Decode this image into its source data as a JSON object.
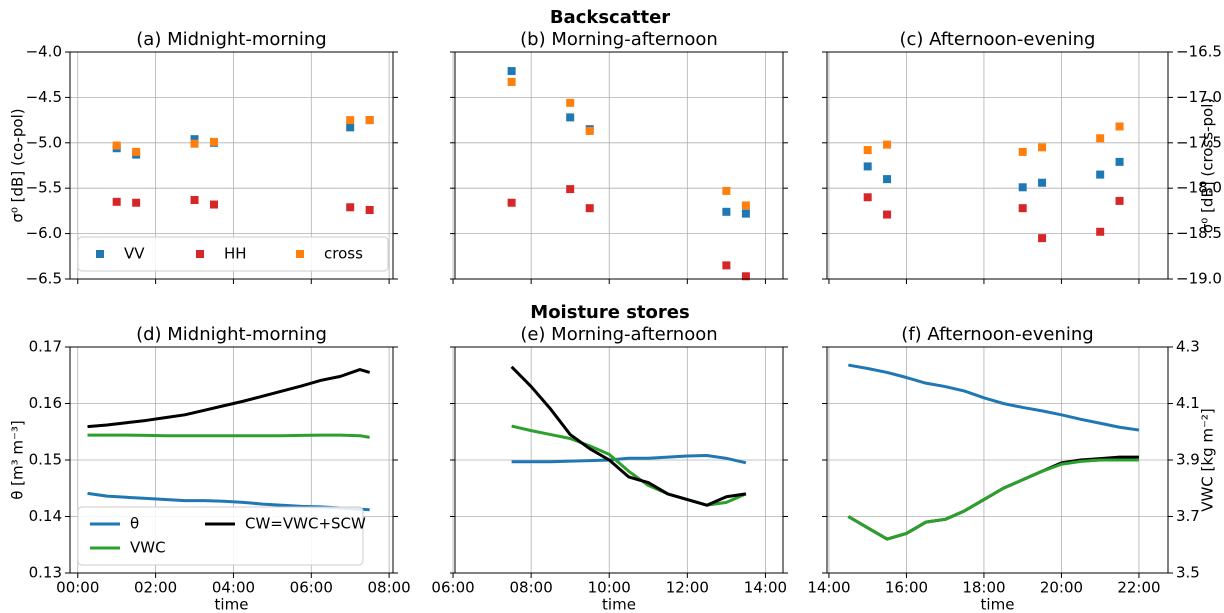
{
  "chart_data": [
    {
      "type": "scatter",
      "suptitle": "Backscatter",
      "title": "(a) Midnight-morning",
      "ylabel": "σ⁰ [dB] (co-pol)",
      "legend": "lower left",
      "ylim": [
        -6.5,
        -4.0
      ],
      "yticks": [
        {
          "value": -6.5,
          "label": "−6.5"
        },
        {
          "value": -6.0,
          "label": "−6.0"
        },
        {
          "value": -5.5,
          "label": "−5.5"
        },
        {
          "value": -5.0,
          "label": "−5.0"
        },
        {
          "value": -4.5,
          "label": "−4.5"
        },
        {
          "value": -4.0,
          "label": "−4.0"
        }
      ],
      "grid": true,
      "x": [
        1.0,
        1.5,
        3.0,
        3.5,
        7.0,
        7.5
      ],
      "series": [
        {
          "name": "VV",
          "color": "#1f77b4",
          "values": [
            -5.06,
            -5.13,
            -4.96,
            -5.0,
            -4.83,
            -4.75
          ]
        },
        {
          "name": "HH",
          "color": "#d62728",
          "values": [
            -5.65,
            -5.66,
            -5.63,
            -5.68,
            -5.71,
            -5.74
          ]
        },
        {
          "name": "cross",
          "color": "#ff7f0e",
          "axis": "y2",
          "values": [
            -17.53,
            -17.6,
            -17.51,
            -17.49,
            -17.25,
            -17.25
          ]
        }
      ]
    },
    {
      "type": "scatter",
      "title": "(b) Morning-afternoon",
      "ylim": [
        -6.5,
        -4.0
      ],
      "grid": true,
      "x": [
        7.5,
        9.0,
        9.5,
        13.0,
        13.5
      ],
      "series": [
        {
          "color": "#1f77b4",
          "values": [
            -4.21,
            -4.72,
            -4.85,
            -5.76,
            -5.78
          ]
        },
        {
          "color": "#d62728",
          "values": [
            -5.66,
            -5.51,
            -5.72,
            -6.35,
            -6.47
          ]
        },
        {
          "color": "#ff7f0e",
          "axis": "y2",
          "values": [
            -16.83,
            -17.06,
            -17.37,
            -18.03,
            -18.19
          ]
        }
      ]
    },
    {
      "type": "scatter",
      "title": "(c) Afternoon-evening",
      "y2label": "σ⁰ [dB] (cross-pol)",
      "ylim": [
        -6.5,
        -4.0
      ],
      "y2lim": [
        -19.0,
        -16.5
      ],
      "y2ticks": [
        {
          "value": -19.0,
          "label": "−19.0"
        },
        {
          "value": -18.5,
          "label": "−18.5"
        },
        {
          "value": -18.0,
          "label": "−18.0"
        },
        {
          "value": -17.5,
          "label": "−17.5"
        },
        {
          "value": -17.0,
          "label": "−17.0"
        },
        {
          "value": -16.5,
          "label": "−16.5"
        }
      ],
      "grid": true,
      "x": [
        15.0,
        15.5,
        19.0,
        19.5,
        21.0,
        21.5
      ],
      "series": [
        {
          "color": "#1f77b4",
          "values": [
            -5.26,
            -5.4,
            -5.49,
            -5.44,
            -5.35,
            -5.21
          ]
        },
        {
          "color": "#d62728",
          "values": [
            -5.6,
            -5.79,
            -5.72,
            -6.05,
            -5.98,
            -5.64
          ]
        },
        {
          "color": "#ff7f0e",
          "axis": "y2",
          "values": [
            -17.58,
            -17.52,
            -17.6,
            -17.55,
            -17.45,
            -17.32
          ]
        }
      ]
    },
    {
      "type": "line",
      "suptitle": "Moisture stores",
      "title": "(d) Midnight-morning",
      "ylabel": "θ [m³ m⁻³]",
      "xlabel": "time",
      "legend": "lower left",
      "xlim": [
        -0.2,
        8.1
      ],
      "xticks": [
        {
          "value": 0,
          "label": "00:00"
        },
        {
          "value": 2,
          "label": "02:00"
        },
        {
          "value": 4,
          "label": "04:00"
        },
        {
          "value": 6,
          "label": "06:00"
        },
        {
          "value": 8,
          "label": "08:00"
        }
      ],
      "ylim": [
        0.13,
        0.17
      ],
      "yticks": [
        0.13,
        0.14,
        0.15,
        0.16,
        0.17
      ],
      "grid": true,
      "x": [
        0.25,
        0.75,
        1.25,
        1.75,
        2.25,
        2.75,
        3.25,
        3.75,
        4.25,
        4.75,
        5.25,
        5.75,
        6.25,
        6.75,
        7.25,
        7.5
      ],
      "series": [
        {
          "name": "θ",
          "color": "#1f77b4",
          "values": [
            0.1441,
            0.1436,
            0.1434,
            0.1432,
            0.143,
            0.1428,
            0.1428,
            0.1427,
            0.1425,
            0.1422,
            0.142,
            0.1418,
            0.1417,
            0.1415,
            0.1413,
            0.1412
          ]
        },
        {
          "name": "VWC",
          "color": "#2ca02c",
          "axis": "y2",
          "values": [
            3.988,
            3.988,
            3.988,
            3.987,
            3.986,
            3.986,
            3.986,
            3.986,
            3.986,
            3.986,
            3.986,
            3.987,
            3.988,
            3.988,
            3.986,
            3.98
          ]
        },
        {
          "name": "CW=VWC+SCW",
          "color": "#000000",
          "axis": "y2",
          "values": [
            4.018,
            4.024,
            4.032,
            4.04,
            4.05,
            4.06,
            4.076,
            4.092,
            4.108,
            4.126,
            4.144,
            4.162,
            4.182,
            4.196,
            4.22,
            4.21
          ]
        }
      ]
    },
    {
      "type": "line",
      "title": "(e) Morning-afternoon",
      "xlabel": "time",
      "xlim": [
        6.05,
        14.45
      ],
      "xticks": [
        {
          "value": 6,
          "label": "06:00"
        },
        {
          "value": 8,
          "label": "08:00"
        },
        {
          "value": 10,
          "label": "10:00"
        },
        {
          "value": 12,
          "label": "12:00"
        },
        {
          "value": 14,
          "label": "14:00"
        }
      ],
      "ylim": [
        0.13,
        0.17
      ],
      "grid": true,
      "x": [
        7.5,
        8.0,
        8.5,
        9.0,
        9.5,
        10.0,
        10.5,
        11.0,
        11.5,
        12.0,
        12.5,
        13.0,
        13.5
      ],
      "series": [
        {
          "color": "#1f77b4",
          "values": [
            0.1497,
            0.1497,
            0.1497,
            0.1498,
            0.1499,
            0.15,
            0.1503,
            0.1503,
            0.1505,
            0.1507,
            0.1508,
            0.1503,
            0.1495
          ]
        },
        {
          "color": "#2ca02c",
          "axis": "y2",
          "values": [
            4.02,
            4.004,
            3.99,
            3.976,
            3.95,
            3.92,
            3.86,
            3.81,
            3.78,
            3.76,
            3.74,
            3.75,
            3.78
          ]
        },
        {
          "color": "#000000",
          "axis": "y2",
          "values": [
            4.23,
            4.16,
            4.08,
            3.99,
            3.94,
            3.9,
            3.84,
            3.82,
            3.78,
            3.76,
            3.74,
            3.77,
            3.78
          ]
        }
      ]
    },
    {
      "type": "line",
      "title": "(f) Afternoon-evening",
      "xlabel": "time",
      "y2label": "VWC [kg m⁻²]",
      "xlim": [
        13.95,
        22.75
      ],
      "xticks": [
        {
          "value": 14,
          "label": "14:00"
        },
        {
          "value": 16,
          "label": "16:00"
        },
        {
          "value": 18,
          "label": "18:00"
        },
        {
          "value": 20,
          "label": "20:00"
        },
        {
          "value": 22,
          "label": "22:00"
        }
      ],
      "ylim": [
        0.13,
        0.17
      ],
      "y2lim": [
        3.5,
        4.3
      ],
      "y2ticks": [
        3.5,
        3.7,
        3.9,
        4.1,
        4.3
      ],
      "grid": true,
      "x": [
        14.5,
        15.0,
        15.5,
        16.0,
        16.5,
        17.0,
        17.5,
        18.0,
        18.5,
        19.0,
        19.5,
        20.0,
        20.5,
        21.0,
        21.5,
        22.0
      ],
      "series": [
        {
          "color": "#1f77b4",
          "values": [
            0.1668,
            0.1662,
            0.1655,
            0.1646,
            0.1636,
            0.163,
            0.1622,
            0.161,
            0.16,
            0.1593,
            0.1587,
            0.158,
            0.1572,
            0.1565,
            0.1558,
            0.1553
          ]
        },
        {
          "color": "#000000",
          "axis": "y2",
          "values": [
            3.7,
            3.66,
            3.62,
            3.64,
            3.68,
            3.69,
            3.72,
            3.76,
            3.8,
            3.83,
            3.86,
            3.89,
            3.9,
            3.905,
            3.91,
            3.91
          ]
        },
        {
          "color": "#2ca02c",
          "axis": "y2",
          "values": [
            3.7,
            3.66,
            3.62,
            3.64,
            3.68,
            3.69,
            3.72,
            3.76,
            3.8,
            3.83,
            3.86,
            3.885,
            3.895,
            3.9,
            3.9,
            3.9
          ]
        }
      ]
    }
  ]
}
